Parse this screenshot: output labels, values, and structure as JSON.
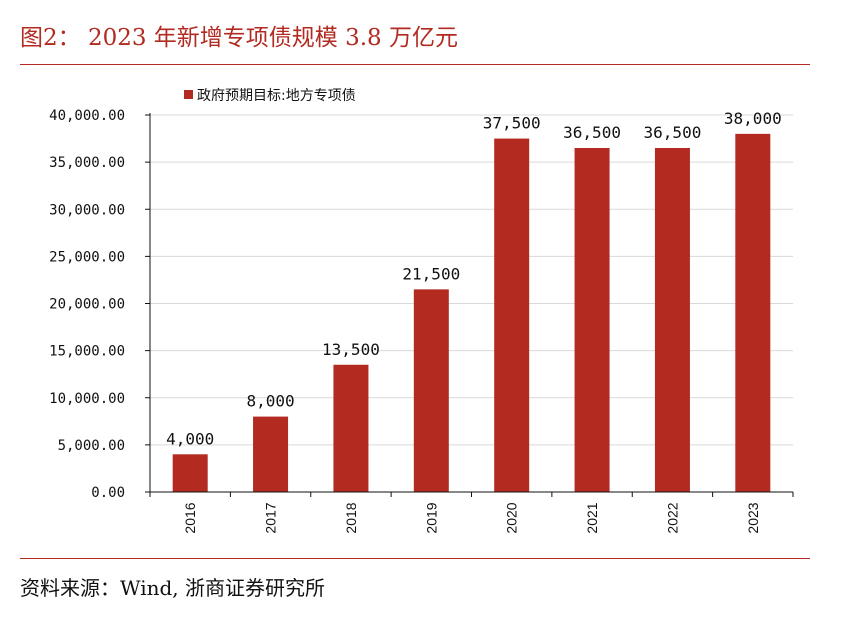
{
  "header": {
    "title": "图2： 2023 年新增专项债规模 3.8 万亿元"
  },
  "footer": {
    "source": "资料来源：Wind, 浙商证券研究所"
  },
  "colors": {
    "bar": "#b22a20",
    "accent": "#b22a20",
    "grid": "#d9d9d9",
    "axis": "#111111"
  },
  "chart_data": {
    "type": "bar",
    "title": "",
    "xlabel": "",
    "ylabel": "",
    "categories": [
      "2016",
      "2017",
      "2018",
      "2019",
      "2020",
      "2021",
      "2022",
      "2023"
    ],
    "series": [
      {
        "name": "政府预期目标:地方专项债",
        "values": [
          4000,
          8000,
          13500,
          21500,
          37500,
          36500,
          36500,
          38000
        ],
        "labels": [
          "4,000",
          "8,000",
          "13,500",
          "21,500",
          "37,500",
          "36,500",
          "36,500",
          "38,000"
        ]
      }
    ],
    "ylim": [
      0,
      40000
    ],
    "yticks": [
      0,
      5000,
      10000,
      15000,
      20000,
      25000,
      30000,
      35000,
      40000
    ],
    "ytick_labels": [
      "0.00",
      "5,000.00",
      "10,000.00",
      "15,000.00",
      "20,000.00",
      "25,000.00",
      "30,000.00",
      "35,000.00",
      "40,000.00"
    ],
    "grid": true,
    "legend": "top-left",
    "x_tick_rotation": "vertical"
  }
}
